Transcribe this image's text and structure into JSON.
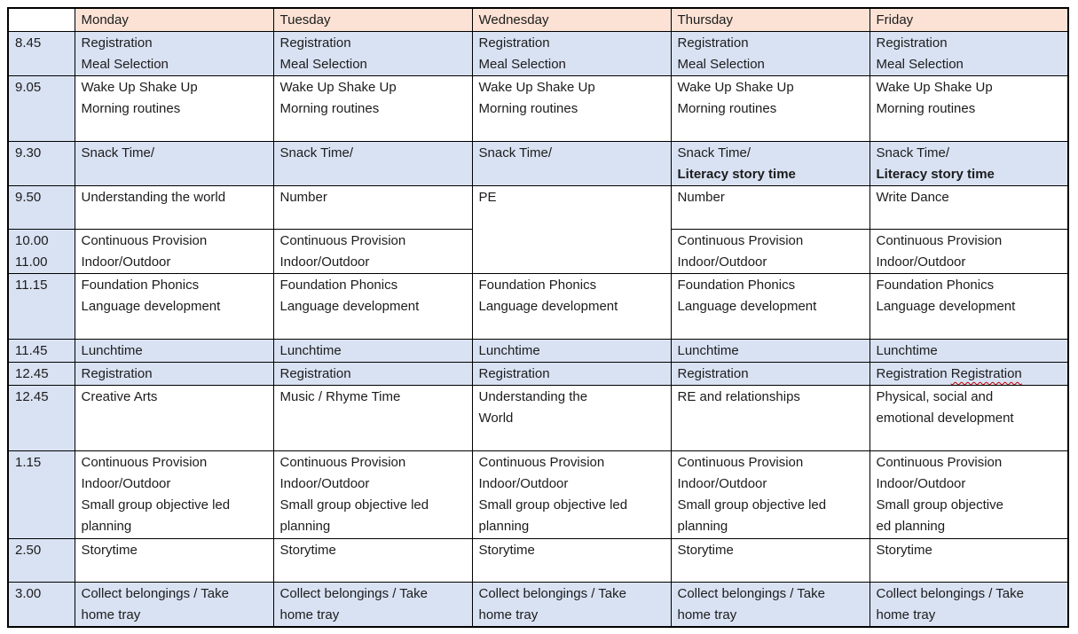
{
  "colors": {
    "header_bg": "#FBE2D5",
    "accent_row_bg": "#D9E2F3",
    "grid": "#000000",
    "text": "#1C1C1C",
    "squiggle": "#C00000"
  },
  "header": {
    "corner": "",
    "days": [
      "Monday",
      "Tuesday",
      "Wednesday",
      "Thursday",
      "Friday"
    ]
  },
  "rows": [
    {
      "time_lines": [
        "8.45"
      ],
      "shaded": true,
      "cells": [
        {
          "lines": [
            "Registration",
            "Meal Selection"
          ]
        },
        {
          "lines": [
            "Registration",
            "Meal Selection"
          ]
        },
        {
          "lines": [
            "Registration",
            "Meal Selection"
          ]
        },
        {
          "lines": [
            "Registration",
            "Meal Selection"
          ]
        },
        {
          "lines": [
            "Registration",
            "Meal Selection"
          ]
        }
      ]
    },
    {
      "time_lines": [
        "9.05"
      ],
      "shaded": false,
      "cells": [
        {
          "lines": [
            "Wake Up Shake Up",
            "Morning routines"
          ]
        },
        {
          "lines": [
            "Wake Up Shake Up",
            "Morning routines"
          ]
        },
        {
          "lines": [
            "Wake Up Shake Up",
            "Morning routines"
          ]
        },
        {
          "lines": [
            "Wake Up Shake Up",
            "Morning routines"
          ]
        },
        {
          "lines": [
            "Wake Up Shake Up",
            "Morning routines"
          ]
        }
      ]
    },
    {
      "time_lines": [
        "9.30"
      ],
      "shaded": true,
      "cells": [
        {
          "lines": [
            "Snack Time/"
          ]
        },
        {
          "lines": [
            "Snack Time/"
          ]
        },
        {
          "lines": [
            "Snack Time/"
          ]
        },
        {
          "lines": [
            "Snack Time/",
            {
              "text": "Literacy story time",
              "bold": true
            }
          ]
        },
        {
          "lines": [
            "Snack Time/",
            {
              "text": "Literacy story time",
              "bold": true
            }
          ]
        }
      ]
    },
    {
      "time_lines": [
        "9.50"
      ],
      "shaded": false,
      "cells": [
        {
          "lines": [
            "Understanding the world"
          ]
        },
        {
          "lines": [
            "Number"
          ]
        },
        {
          "lines": [
            "PE"
          ],
          "rowspan": 2
        },
        {
          "lines": [
            "Number"
          ]
        },
        {
          "lines": [
            "Write Dance"
          ]
        }
      ]
    },
    {
      "time_lines": [
        "10.00",
        "11.00"
      ],
      "shaded": false,
      "cells": [
        {
          "lines": [
            "Continuous Provision",
            "Indoor/Outdoor"
          ]
        },
        {
          "lines": [
            "Continuous Provision",
            "Indoor/Outdoor"
          ]
        },
        {
          "skip": true
        },
        {
          "lines": [
            "Continuous Provision",
            "Indoor/Outdoor"
          ]
        },
        {
          "lines": [
            "Continuous Provision",
            "Indoor/Outdoor"
          ]
        }
      ]
    },
    {
      "time_lines": [
        "11.15"
      ],
      "shaded": false,
      "cells": [
        {
          "lines": [
            "Foundation Phonics",
            "Language development"
          ]
        },
        {
          "lines": [
            "Foundation Phonics",
            "Language development"
          ]
        },
        {
          "lines": [
            "Foundation Phonics",
            "Language development"
          ]
        },
        {
          "lines": [
            "Foundation Phonics",
            "Language development"
          ]
        },
        {
          "lines": [
            "Foundation Phonics",
            "Language development"
          ]
        }
      ]
    },
    {
      "time_lines": [
        "11.45"
      ],
      "shaded": true,
      "cells": [
        {
          "lines": [
            "Lunchtime"
          ]
        },
        {
          "lines": [
            "Lunchtime"
          ]
        },
        {
          "lines": [
            "Lunchtime"
          ]
        },
        {
          "lines": [
            "Lunchtime"
          ]
        },
        {
          "lines": [
            "Lunchtime"
          ]
        }
      ]
    },
    {
      "time_lines": [
        "12.45"
      ],
      "shaded": true,
      "cells": [
        {
          "lines": [
            "Registration"
          ]
        },
        {
          "lines": [
            "Registration"
          ]
        },
        {
          "lines": [
            "Registration"
          ]
        },
        {
          "lines": [
            "Registration"
          ]
        },
        {
          "lines": [
            {
              "segments": [
                {
                  "text": "Registration "
                },
                {
                  "text": "Registration",
                  "squiggle": true
                }
              ]
            }
          ]
        }
      ]
    },
    {
      "time_lines": [
        "12.45"
      ],
      "shaded": false,
      "cells": [
        {
          "lines": [
            "Creative Arts"
          ]
        },
        {
          "lines": [
            "Music / Rhyme Time"
          ]
        },
        {
          "lines": [
            "Understanding the",
            "World"
          ]
        },
        {
          "lines": [
            "RE and relationships"
          ]
        },
        {
          "lines": [
            "Physical, social and",
            "emotional development"
          ]
        }
      ]
    },
    {
      "time_lines": [
        "1.15"
      ],
      "shaded": false,
      "cells": [
        {
          "lines": [
            "Continuous Provision",
            "Indoor/Outdoor",
            "Small group objective led",
            "planning"
          ]
        },
        {
          "lines": [
            "Continuous Provision",
            "Indoor/Outdoor",
            "Small group objective led",
            "planning"
          ]
        },
        {
          "lines": [
            "Continuous Provision",
            "Indoor/Outdoor",
            "Small group objective led",
            "planning"
          ]
        },
        {
          "lines": [
            "Continuous Provision",
            "Indoor/Outdoor",
            "Small group objective led",
            "planning"
          ]
        },
        {
          "lines": [
            "Continuous Provision",
            "Indoor/Outdoor",
            "Small group objective",
            "ed planning"
          ]
        }
      ]
    },
    {
      "time_lines": [
        "2.50"
      ],
      "shaded": false,
      "cells": [
        {
          "lines": [
            "Storytime"
          ]
        },
        {
          "lines": [
            "Storytime"
          ]
        },
        {
          "lines": [
            "Storytime"
          ]
        },
        {
          "lines": [
            "Storytime"
          ]
        },
        {
          "lines": [
            "Storytime"
          ]
        }
      ]
    },
    {
      "time_lines": [
        "3.00"
      ],
      "shaded": true,
      "cells": [
        {
          "lines": [
            "Collect belongings / Take",
            "home tray"
          ]
        },
        {
          "lines": [
            "Collect belongings / Take",
            "home tray"
          ]
        },
        {
          "lines": [
            "Collect belongings / Take",
            "home tray"
          ]
        },
        {
          "lines": [
            "Collect belongings / Take",
            "home tray"
          ]
        },
        {
          "lines": [
            "Collect belongings / Take",
            "home tray"
          ]
        }
      ]
    }
  ]
}
